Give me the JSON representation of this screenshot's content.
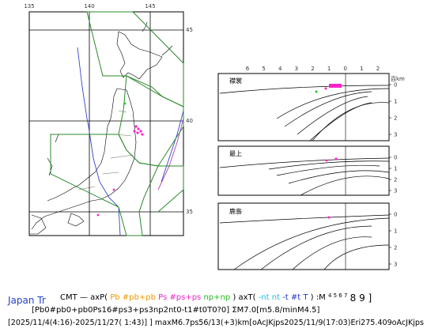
{
  "map": {
    "lon_labels": [
      "135",
      "140",
      "145"
    ],
    "lat_labels": [
      "45",
      "40",
      "35"
    ]
  },
  "sections": {
    "distance_labels": [
      "6",
      "5",
      "4",
      "3",
      "2",
      "1",
      "0",
      "1",
      "2"
    ],
    "unit": "百km",
    "depth_labels": [
      "0",
      "1",
      "2",
      "3"
    ],
    "panels": [
      {
        "label": "襟裳"
      },
      {
        "label": "最上"
      },
      {
        "label": "鹿島"
      }
    ]
  },
  "caption": {
    "region": "Japan Tr",
    "legend": [
      "CMT — axP(",
      "Pb #pb+pb ",
      "Ps #ps+ps ",
      " np+np",
      ") axT(",
      "-nt nt ",
      "-t #t T",
      ")  :M",
      "4 5 6 7",
      " 8 9 ]"
    ],
    "summary": "[Pb0#pb0+pb0Ps16#ps3+ps3np2nt0-t1#t0T0?0] ΣM7.0[m5.8/minM4.5]",
    "period": "[2025/11/4(4:16)-2025/11/27( 1:43)] ] maxM6.7ps56/13(+3)km[oAcJKjps2025/11/9(17:03)Eri275.409oAcJKjps"
  }
}
